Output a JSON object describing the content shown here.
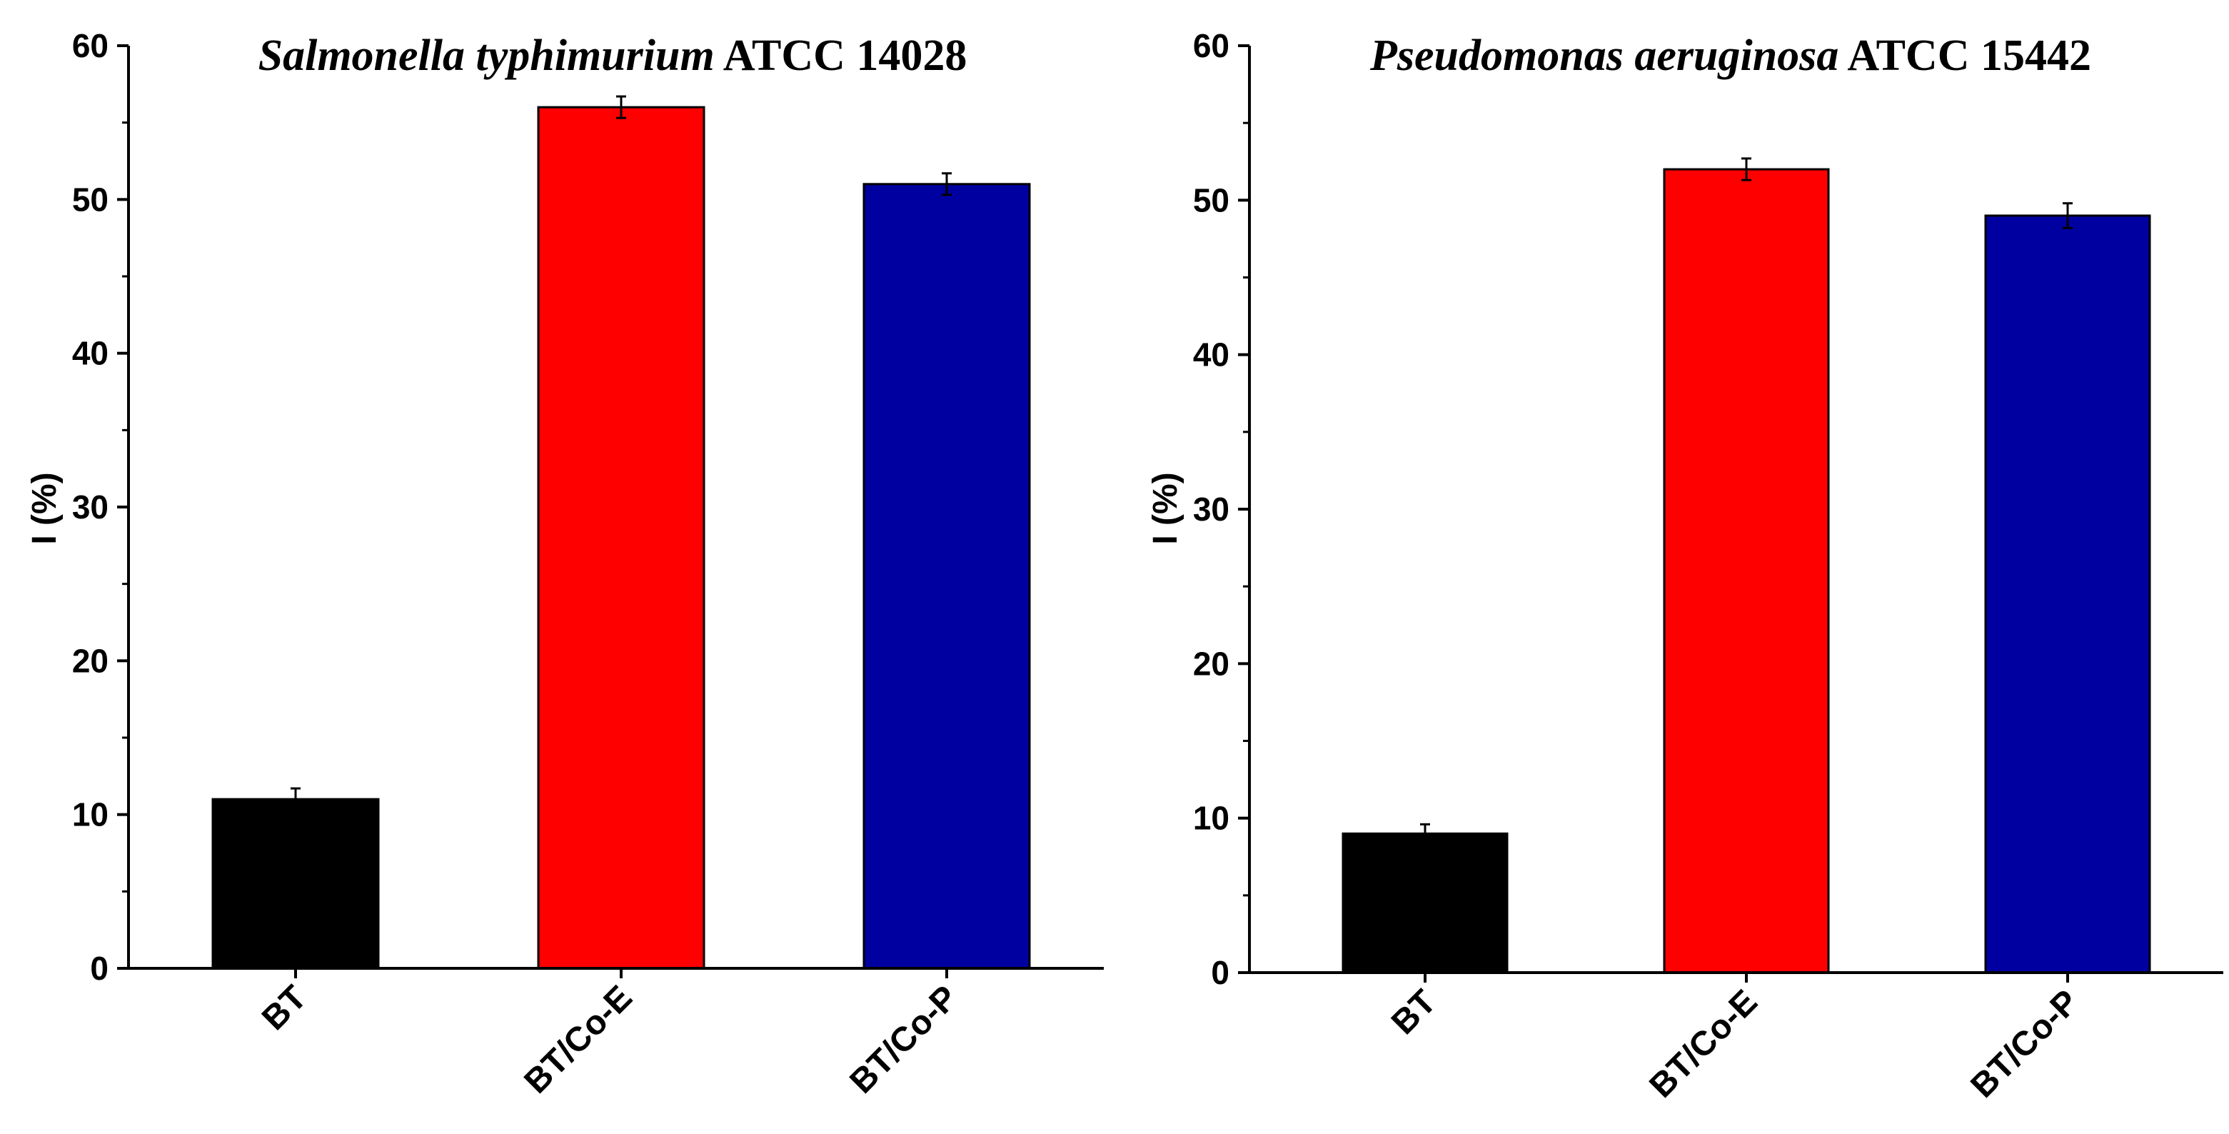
{
  "chart_data": [
    {
      "type": "bar",
      "title_italic": "Salmonella typhimurium",
      "title_rest": " ATCC 14028",
      "ylabel": "I (%)",
      "xlabel": "",
      "categories": [
        "BT",
        "BT/Co-E",
        "BT/Co-P"
      ],
      "values": [
        11,
        56,
        51
      ],
      "errors": [
        0.7,
        0.7,
        0.7
      ],
      "colors": [
        "#000000",
        "#ff0000",
        "#0000a0"
      ],
      "ylim": [
        0,
        60
      ],
      "yticks": [
        0,
        10,
        20,
        30,
        40,
        50,
        60
      ],
      "grid": false,
      "legend": "none"
    },
    {
      "type": "bar",
      "title_italic": "Pseudomonas aeruginosa",
      "title_rest": " ATCC 15442",
      "ylabel": "I (%)",
      "xlabel": "",
      "categories": [
        "BT",
        "BT/Co-E",
        "BT/Co-P"
      ],
      "values": [
        9,
        52,
        49
      ],
      "errors": [
        0.6,
        0.7,
        0.8
      ],
      "colors": [
        "#000000",
        "#ff0000",
        "#0000a0"
      ],
      "ylim": [
        0,
        60
      ],
      "yticks": [
        0,
        10,
        20,
        30,
        40,
        50,
        60
      ],
      "grid": false,
      "legend": "none"
    }
  ]
}
